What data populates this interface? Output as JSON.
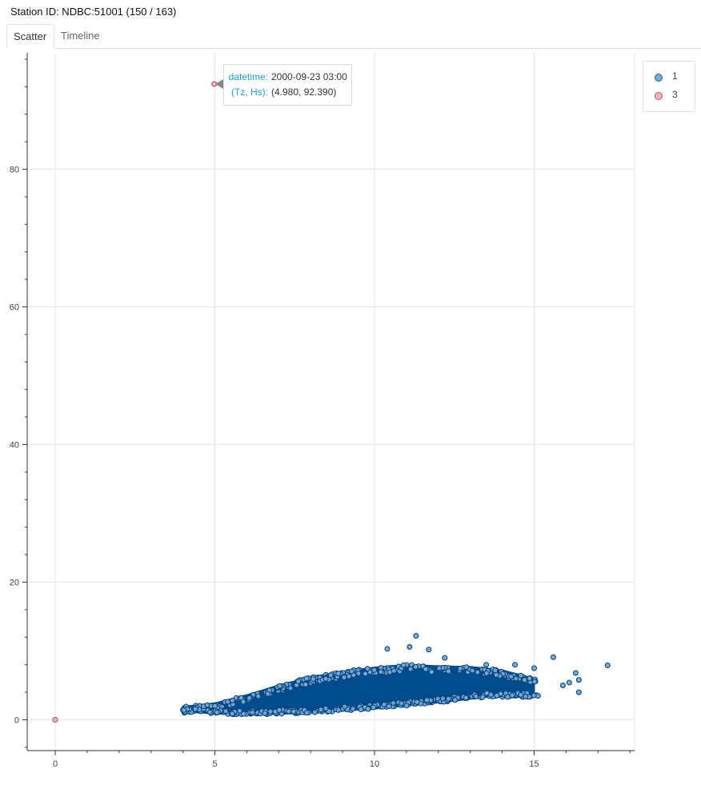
{
  "header": {
    "title": "Station ID: NDBC:51001 (150 / 163)"
  },
  "tabs": [
    {
      "label": "Scatter",
      "active": true
    },
    {
      "label": "Timeline",
      "active": false
    }
  ],
  "legend": {
    "items": [
      {
        "label": "1",
        "color": "#7aa9d4",
        "border": "#2a5b8c"
      },
      {
        "label": "3",
        "color": "#f0b7bf",
        "border": "#c0506a"
      }
    ]
  },
  "tooltip": {
    "rows": [
      {
        "key": "datetime:",
        "value": "2000-09-23 03:00"
      },
      {
        "key": "(Tz, Hs):",
        "value": "(4.980, 92.390)"
      }
    ]
  },
  "chart_data": {
    "type": "scatter",
    "title": "",
    "xlabel": "",
    "ylabel": "",
    "xlim": [
      -0.9,
      18.1
    ],
    "ylim": [
      -4.5,
      97.5
    ],
    "xticks": [
      0,
      5,
      10,
      15
    ],
    "yticks": [
      0,
      20,
      40,
      60,
      80
    ],
    "grid": true,
    "legend_position": "top-right, outside plot",
    "colors": {
      "series_1": "#004c8c",
      "series_3": "#c0506a"
    },
    "series": [
      {
        "name": "1",
        "description_envelope_lower": [
          [
            4.0,
            1.2
          ],
          [
            5.0,
            0.9
          ],
          [
            6.0,
            0.7
          ],
          [
            8.0,
            1.0
          ],
          [
            10.0,
            1.6
          ],
          [
            12.0,
            2.5
          ],
          [
            13.5,
            3.3
          ]
        ],
        "description_envelope_upper": [
          [
            4.0,
            1.9
          ],
          [
            5.0,
            2.4
          ],
          [
            6.0,
            3.6
          ],
          [
            7.0,
            5.0
          ],
          [
            8.0,
            6.2
          ],
          [
            9.0,
            7.0
          ],
          [
            10.0,
            7.6
          ],
          [
            11.0,
            8.0
          ],
          [
            12.0,
            7.8
          ],
          [
            13.0,
            7.7
          ],
          [
            14.0,
            7.2
          ],
          [
            15.0,
            6.0
          ]
        ],
        "x_range": [
          4.0,
          17.3
        ],
        "y_range": [
          0.7,
          12.3
        ],
        "outliers": [
          [
            11.3,
            12.2
          ],
          [
            10.4,
            10.3
          ],
          [
            11.1,
            10.6
          ],
          [
            11.7,
            10.2
          ],
          [
            12.2,
            9.0
          ],
          [
            15.6,
            9.1
          ],
          [
            16.3,
            6.8
          ],
          [
            16.4,
            4.0
          ],
          [
            17.3,
            7.9
          ],
          [
            16.1,
            5.4
          ],
          [
            15.0,
            7.5
          ],
          [
            14.7,
            5.8
          ],
          [
            15.9,
            5.0
          ],
          [
            16.4,
            5.8
          ],
          [
            13.5,
            8.0
          ],
          [
            14.4,
            8.0
          ]
        ]
      },
      {
        "name": "3",
        "points": [
          [
            0.0,
            0.0
          ],
          [
            4.98,
            92.39
          ]
        ]
      }
    ]
  }
}
